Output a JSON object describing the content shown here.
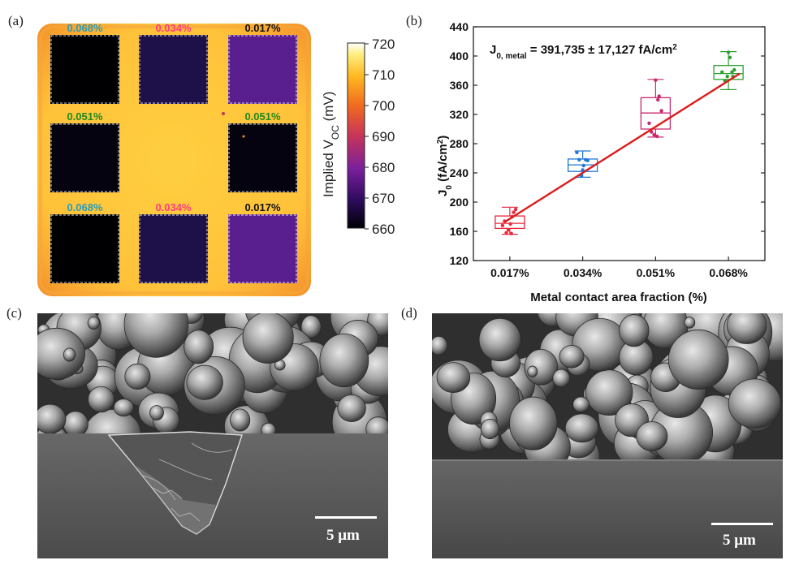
{
  "panels": {
    "a": {
      "label": "(a)"
    },
    "b": {
      "label": "(b)"
    },
    "c": {
      "label": "(c)"
    },
    "d": {
      "label": "(d)"
    }
  },
  "map": {
    "cells": [
      {
        "pct": "0.068%",
        "color": "#2a9db8"
      },
      {
        "pct": "0.034%",
        "color": "#ff3d7f"
      },
      {
        "pct": "0.017%",
        "color": "#111111"
      },
      {
        "pct": "0.051%",
        "color": "#1f8a1f"
      },
      {
        "pct": "0.051%",
        "color": "#1f8a1f"
      },
      {
        "pct": "0.068%",
        "color": "#2a9db8"
      },
      {
        "pct": "0.034%",
        "color": "#ff3d7f"
      },
      {
        "pct": "0.017%",
        "color": "#111111"
      }
    ]
  },
  "colorbar": {
    "ticks": [
      "720",
      "710",
      "700",
      "690",
      "680",
      "670",
      "660"
    ],
    "label_main": "Implied V",
    "label_sub": "OC",
    "label_unit": " (mV)"
  },
  "chart_data": {
    "type": "box",
    "categories": [
      "0.017%",
      "0.034%",
      "0.051%",
      "0.068%"
    ],
    "xlabel": "Metal contact area fraction (%)",
    "ylabel": "J0 (fA/cm2)",
    "ylim": [
      120,
      440
    ],
    "yticks": [
      120,
      160,
      200,
      240,
      280,
      320,
      360,
      400,
      440
    ],
    "annotation": "J0, metal = 391,735 ± 17,127 fA/cm2",
    "boxes": [
      {
        "category": "0.017%",
        "color": "#e8283c",
        "min": 156,
        "q1": 164,
        "median": 171,
        "q3": 181,
        "max": 193,
        "points": [
          [
            -0.25,
            168
          ],
          [
            -0.18,
            174
          ],
          [
            -0.12,
            158
          ],
          [
            -0.05,
            162
          ],
          [
            0.02,
            170
          ],
          [
            0.08,
            180
          ],
          [
            0.13,
            186
          ],
          [
            0.2,
            190
          ],
          [
            0.05,
            157
          ]
        ]
      },
      {
        "category": "0.034%",
        "color": "#1f77d4",
        "min": 234,
        "q1": 242,
        "median": 251,
        "q3": 259,
        "max": 270,
        "points": [
          [
            -0.2,
            268
          ],
          [
            -0.12,
            258
          ],
          [
            -0.05,
            236
          ],
          [
            0.03,
            250
          ],
          [
            0.1,
            258
          ],
          [
            0.17,
            257
          ],
          [
            0.0,
            244
          ]
        ]
      },
      {
        "category": "0.051%",
        "color": "#c8286e",
        "min": 289,
        "q1": 300,
        "median": 322,
        "q3": 343,
        "max": 368,
        "points": [
          [
            -0.22,
            308
          ],
          [
            -0.14,
            296
          ],
          [
            -0.05,
            292
          ],
          [
            0.05,
            290
          ],
          [
            0.12,
            345
          ],
          [
            0.2,
            325
          ],
          [
            0.0,
            367
          ],
          [
            0.08,
            340
          ]
        ]
      },
      {
        "category": "0.068%",
        "color": "#2ca02c",
        "min": 354,
        "q1": 368,
        "median": 376,
        "q3": 387,
        "max": 406,
        "points": [
          [
            -0.22,
            378
          ],
          [
            -0.12,
            366
          ],
          [
            -0.04,
            372
          ],
          [
            0.05,
            398
          ],
          [
            0.12,
            378
          ],
          [
            0.2,
            381
          ],
          [
            0.0,
            405
          ],
          [
            0.15,
            372
          ]
        ]
      }
    ],
    "fit_line": {
      "color": "#dd1c1c",
      "y_start": 173,
      "y_end": 376
    }
  },
  "sem": {
    "c": {
      "scale_text": "5 μm"
    },
    "d": {
      "scale_text": "5 μm"
    }
  }
}
